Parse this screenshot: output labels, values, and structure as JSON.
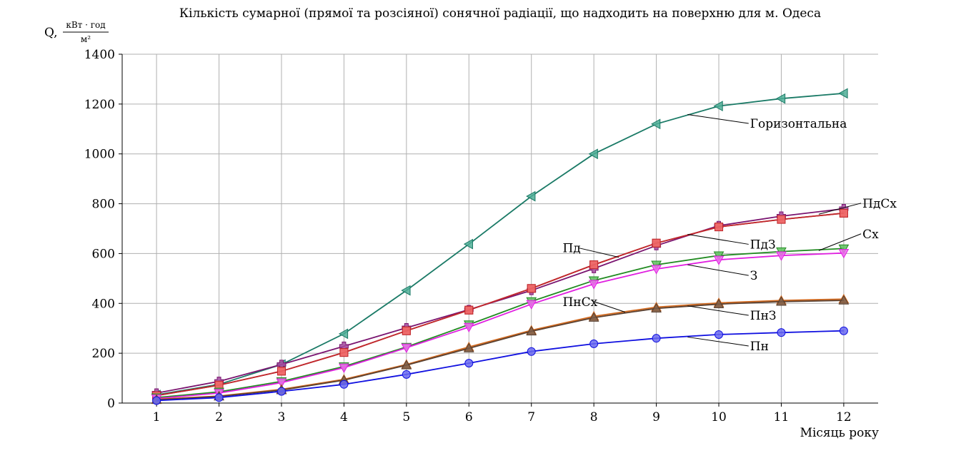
{
  "chart_data": {
    "type": "line",
    "title": "Кількість сумарної (прямої та розсіяної) сонячної радіації, що надходить на поверхню для м. Одеса",
    "ylabel_prefix": "Q,",
    "ylabel_unit_num": "кВт · год",
    "ylabel_unit_den": "м²",
    "xlabel": "Місяць року",
    "x": [
      1,
      2,
      3,
      4,
      5,
      6,
      7,
      8,
      9,
      10,
      11,
      12
    ],
    "xlim": [
      0.45,
      12.55
    ],
    "ylim": [
      0,
      1400
    ],
    "yticks": [
      0,
      200,
      400,
      600,
      800,
      1000,
      1200,
      1400
    ],
    "grid": true,
    "series": [
      {
        "name": "Горизонтальна",
        "marker": "triangle-left",
        "color": "#1a7a66",
        "fill": "#4fae96",
        "values": [
          33,
          75,
          155,
          278,
          452,
          638,
          830,
          1000,
          1120,
          1192,
          1222,
          1243
        ]
      },
      {
        "name": "ПдСх",
        "marker": "plus",
        "color": "#7a1470",
        "fill": "#a64aa0",
        "values": [
          40,
          87,
          155,
          228,
          302,
          375,
          452,
          540,
          632,
          712,
          750,
          780
        ]
      },
      {
        "name": "Пд",
        "marker": "square",
        "color": "#c0282c",
        "fill": "#ee6a6a",
        "values": [
          30,
          72,
          128,
          203,
          290,
          373,
          460,
          555,
          642,
          707,
          737,
          762
        ]
      },
      {
        "name": "ПдЗ",
        "marker": "square",
        "color": "#c0282c",
        "fill": "#ee6a6a",
        "values": [
          30,
          72,
          128,
          203,
          290,
          373,
          460,
          555,
          642,
          707,
          737,
          762
        ]
      },
      {
        "name": "Сх",
        "marker": "triangle-down",
        "color": "#228b22",
        "fill": "#5cc05c",
        "values": [
          22,
          45,
          87,
          147,
          225,
          315,
          408,
          492,
          555,
          592,
          608,
          620
        ]
      },
      {
        "name": "З",
        "marker": "triangle-down",
        "color": "#e020e0",
        "fill": "#f06af0",
        "values": [
          18,
          40,
          82,
          142,
          222,
          305,
          397,
          478,
          538,
          575,
          592,
          602
        ]
      },
      {
        "name": "ПнСх",
        "marker": "triangle-up",
        "color": "#d2691e",
        "fill": "#e89a55",
        "values": [
          15,
          28,
          55,
          95,
          155,
          225,
          292,
          348,
          385,
          402,
          412,
          417
        ]
      },
      {
        "name": "ПнЗ",
        "marker": "triangle-up",
        "color": "#5a4030",
        "fill": "#7a5c48",
        "values": [
          13,
          27,
          52,
          92,
          152,
          220,
          288,
          343,
          380,
          397,
          407,
          412
        ]
      },
      {
        "name": "Пн",
        "marker": "circle",
        "color": "#1010e0",
        "fill": "#6a6af0",
        "values": [
          10,
          22,
          47,
          75,
          115,
          160,
          207,
          238,
          260,
          275,
          283,
          290
        ]
      }
    ],
    "annotations": [
      {
        "text": "Горизонтальна",
        "x": 10.5,
        "y": 1105,
        "arrow_x": 9.5,
        "arrow_y": 1158
      },
      {
        "text": "ПдСх",
        "x": 12.3,
        "y": 785,
        "arrow_x": 11.6,
        "arrow_y": 758
      },
      {
        "text": "Сх",
        "x": 12.3,
        "y": 662,
        "arrow_x": 11.6,
        "arrow_y": 612
      },
      {
        "text": "Пд",
        "x": 7.5,
        "y": 605,
        "arrow_x": 8.4,
        "arrow_y": 585
      },
      {
        "text": "ПдЗ",
        "x": 10.5,
        "y": 620,
        "arrow_x": 9.5,
        "arrow_y": 677
      },
      {
        "text": "З",
        "x": 10.5,
        "y": 495,
        "arrow_x": 9.5,
        "arrow_y": 555
      },
      {
        "text": "ПнСх",
        "x": 7.5,
        "y": 390,
        "arrow_x": 8.5,
        "arrow_y": 365
      },
      {
        "text": "ПнЗ",
        "x": 10.5,
        "y": 335,
        "arrow_x": 9.5,
        "arrow_y": 390
      },
      {
        "text": "Пн",
        "x": 10.5,
        "y": 212,
        "arrow_x": 9.5,
        "arrow_y": 265
      }
    ]
  }
}
